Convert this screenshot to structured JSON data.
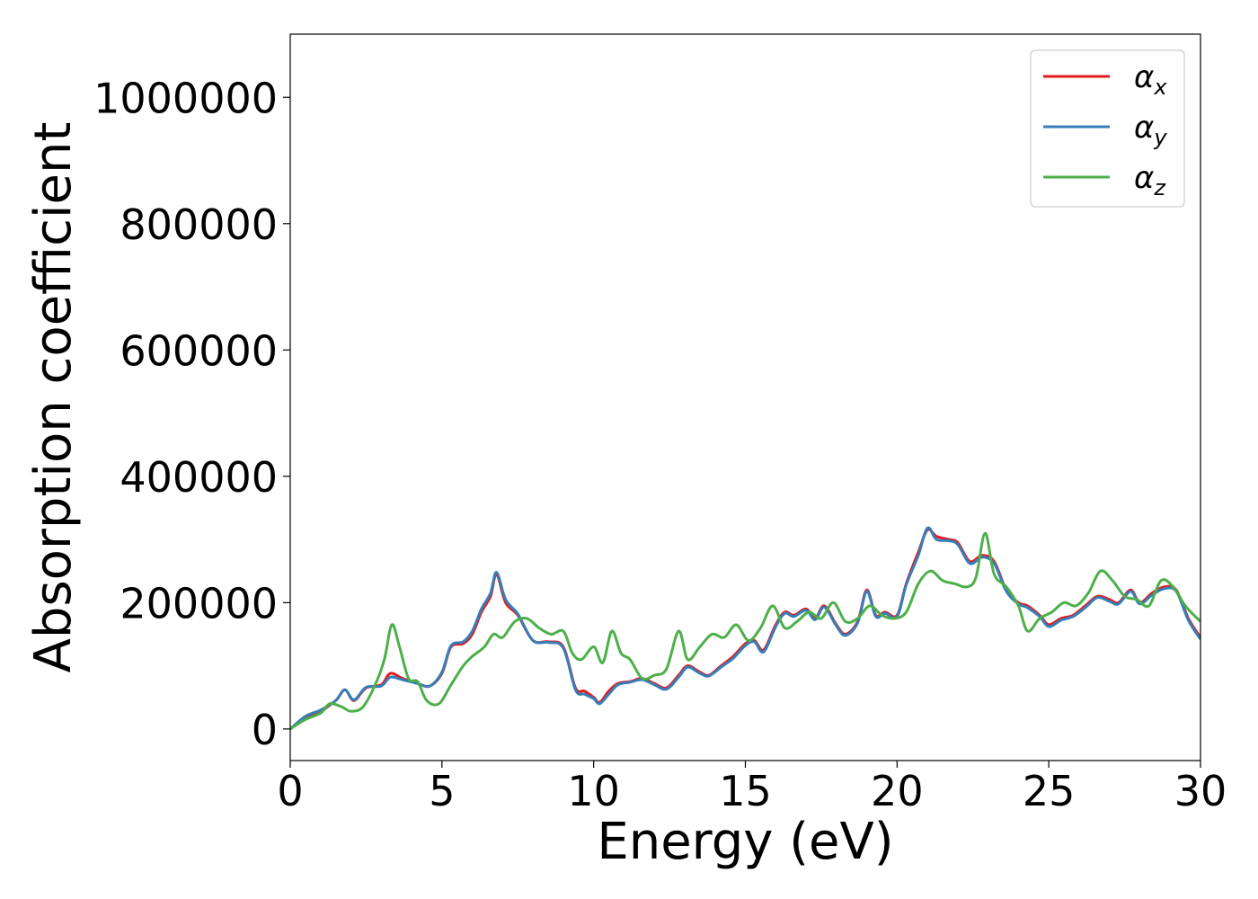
{
  "chart_data": {
    "type": "line",
    "xlabel": "Energy (eV)",
    "ylabel": "Absorption coefficient",
    "xlim": [
      0,
      30
    ],
    "ylim": [
      -50000,
      1100000
    ],
    "x_ticks": [
      "0",
      "5",
      "10",
      "15",
      "20",
      "25",
      "30"
    ],
    "y_ticks": [
      "0",
      "200000",
      "400000",
      "600000",
      "800000",
      "1000000"
    ],
    "grid": false,
    "legend_position": "top-right",
    "series": [
      {
        "name": "αx",
        "symbol": "α",
        "subscript": "x",
        "color": "#e41a1c",
        "x": [
          0,
          0.5,
          1.0,
          1.5,
          1.8,
          2.1,
          2.5,
          3.0,
          3.3,
          3.7,
          4.2,
          4.6,
          5.0,
          5.3,
          5.7,
          6.0,
          6.3,
          6.6,
          6.8,
          7.1,
          7.5,
          8.0,
          8.5,
          9.0,
          9.4,
          9.7,
          10.0,
          10.2,
          10.5,
          10.8,
          11.2,
          11.6,
          12.0,
          12.4,
          12.8,
          13.1,
          13.5,
          13.8,
          14.2,
          14.6,
          15.0,
          15.3,
          15.6,
          16.0,
          16.3,
          16.6,
          17.0,
          17.3,
          17.6,
          18.0,
          18.3,
          18.7,
          19.0,
          19.3,
          19.6,
          20.0,
          20.3,
          20.7,
          21.0,
          21.3,
          21.7,
          22.0,
          22.4,
          22.8,
          23.2,
          23.6,
          24.0,
          24.3,
          24.7,
          25.0,
          25.4,
          25.8,
          26.2,
          26.6,
          27.0,
          27.3,
          27.7,
          28.0,
          28.4,
          28.8,
          29.2,
          29.6,
          30.0
        ],
        "y": [
          0,
          18000,
          28000,
          45000,
          62000,
          45000,
          65000,
          70000,
          88000,
          80000,
          72000,
          68000,
          88000,
          130000,
          135000,
          150000,
          185000,
          210000,
          245000,
          200000,
          180000,
          140000,
          138000,
          130000,
          65000,
          60000,
          50000,
          42000,
          60000,
          72000,
          75000,
          80000,
          72000,
          65000,
          85000,
          100000,
          90000,
          85000,
          100000,
          115000,
          135000,
          140000,
          125000,
          165000,
          185000,
          180000,
          190000,
          175000,
          195000,
          165000,
          150000,
          170000,
          220000,
          180000,
          185000,
          180000,
          230000,
          280000,
          315000,
          305000,
          300000,
          295000,
          265000,
          275000,
          265000,
          220000,
          200000,
          195000,
          180000,
          165000,
          175000,
          180000,
          195000,
          210000,
          205000,
          200000,
          220000,
          200000,
          215000,
          225000,
          220000,
          175000,
          145000
        ]
      },
      {
        "name": "αy",
        "symbol": "α",
        "subscript": "y",
        "color": "#377eb8",
        "x": [
          0,
          0.5,
          1.0,
          1.5,
          1.8,
          2.1,
          2.5,
          3.0,
          3.3,
          3.7,
          4.2,
          4.6,
          5.0,
          5.3,
          5.7,
          6.0,
          6.3,
          6.6,
          6.8,
          7.1,
          7.5,
          8.0,
          8.5,
          9.0,
          9.4,
          9.7,
          10.0,
          10.2,
          10.5,
          10.8,
          11.2,
          11.6,
          12.0,
          12.4,
          12.8,
          13.1,
          13.5,
          13.8,
          14.2,
          14.6,
          15.0,
          15.3,
          15.6,
          16.0,
          16.3,
          16.6,
          17.0,
          17.3,
          17.6,
          18.0,
          18.3,
          18.7,
          19.0,
          19.3,
          19.6,
          20.0,
          20.3,
          20.7,
          21.0,
          21.3,
          21.7,
          22.0,
          22.4,
          22.8,
          23.2,
          23.6,
          24.0,
          24.3,
          24.7,
          25.0,
          25.4,
          25.8,
          26.2,
          26.6,
          27.0,
          27.3,
          27.7,
          28.0,
          28.4,
          28.8,
          29.2,
          29.6,
          30.0
        ],
        "y": [
          0,
          20000,
          30000,
          45000,
          62000,
          46000,
          66000,
          68000,
          82000,
          78000,
          72000,
          68000,
          90000,
          132000,
          138000,
          155000,
          190000,
          215000,
          248000,
          205000,
          182000,
          140000,
          137000,
          128000,
          62000,
          55000,
          48000,
          40000,
          55000,
          70000,
          74000,
          78000,
          70000,
          63000,
          82000,
          98000,
          88000,
          84000,
          98000,
          112000,
          132000,
          138000,
          122000,
          162000,
          183000,
          178000,
          188000,
          173000,
          193000,
          163000,
          148000,
          168000,
          218000,
          178000,
          183000,
          178000,
          228000,
          275000,
          318000,
          300000,
          298000,
          292000,
          262000,
          272000,
          262000,
          218000,
          198000,
          192000,
          178000,
          162000,
          172000,
          178000,
          192000,
          208000,
          202000,
          198000,
          218000,
          198000,
          212000,
          222000,
          218000,
          172000,
          142000
        ]
      },
      {
        "name": "αz",
        "symbol": "α",
        "subscript": "z",
        "color": "#4daf4a",
        "x": [
          0,
          0.5,
          1.0,
          1.3,
          1.7,
          2.0,
          2.4,
          2.8,
          3.1,
          3.35,
          3.6,
          3.9,
          4.2,
          4.5,
          4.9,
          5.3,
          5.7,
          6.0,
          6.4,
          6.7,
          7.0,
          7.4,
          7.8,
          8.2,
          8.6,
          9.0,
          9.3,
          9.6,
          10.0,
          10.3,
          10.6,
          10.9,
          11.2,
          11.6,
          12.0,
          12.4,
          12.8,
          13.1,
          13.5,
          13.9,
          14.3,
          14.7,
          15.1,
          15.5,
          15.9,
          16.3,
          16.7,
          17.1,
          17.5,
          17.9,
          18.3,
          18.7,
          19.1,
          19.5,
          19.9,
          20.3,
          20.7,
          21.1,
          21.5,
          21.9,
          22.3,
          22.6,
          22.9,
          23.2,
          23.6,
          24.0,
          24.3,
          24.7,
          25.1,
          25.5,
          25.9,
          26.3,
          26.7,
          27.1,
          27.5,
          27.9,
          28.3,
          28.7,
          29.1,
          29.5,
          30.0
        ],
        "y": [
          0,
          15000,
          25000,
          40000,
          35000,
          28000,
          35000,
          70000,
          110000,
          165000,
          130000,
          80000,
          75000,
          45000,
          40000,
          70000,
          100000,
          115000,
          130000,
          150000,
          145000,
          170000,
          175000,
          160000,
          150000,
          155000,
          120000,
          110000,
          130000,
          105000,
          155000,
          120000,
          110000,
          80000,
          85000,
          95000,
          155000,
          110000,
          130000,
          150000,
          145000,
          165000,
          140000,
          160000,
          195000,
          160000,
          170000,
          185000,
          175000,
          200000,
          170000,
          175000,
          195000,
          180000,
          175000,
          185000,
          230000,
          250000,
          235000,
          230000,
          225000,
          240000,
          310000,
          245000,
          225000,
          195000,
          155000,
          175000,
          185000,
          200000,
          195000,
          215000,
          250000,
          235000,
          210000,
          205000,
          195000,
          235000,
          225000,
          195000,
          170000
        ]
      }
    ]
  }
}
